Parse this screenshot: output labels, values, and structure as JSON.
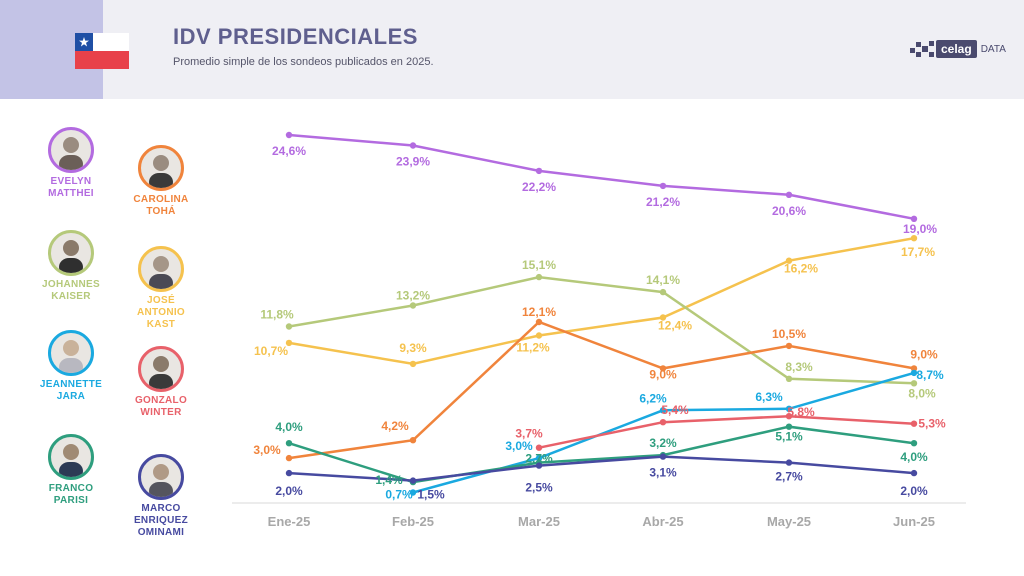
{
  "header": {
    "title": "IDV PRESIDENCIALES",
    "subtitle": "Promedio simple de los sondeos publicados en 2025.",
    "logo_name": "celag",
    "logo_sub": "DATA"
  },
  "candidates": [
    {
      "line1": "EVELYN",
      "line2": "MATTHEI",
      "line3": "",
      "color": "#b36be0"
    },
    {
      "line1": "CAROLINA",
      "line2": "TOHÁ",
      "line3": "",
      "color": "#f0843c"
    },
    {
      "line1": "JOHANNES",
      "line2": "KAISER",
      "line3": "",
      "color": "#b5c97a"
    },
    {
      "line1": "JOSÉ",
      "line2": "ANTONIO",
      "line3": "KAST",
      "color": "#f5c24e"
    },
    {
      "line1": "JEANNETTE",
      "line2": "JARA",
      "line3": "",
      "color": "#1aa9e0"
    },
    {
      "line1": "GONZALO",
      "line2": "WINTER",
      "line3": "",
      "color": "#e8616a"
    },
    {
      "line1": "FRANCO",
      "line2": "PARISI",
      "line3": "",
      "color": "#2e9e7e"
    },
    {
      "line1": "MARCO",
      "line2": "ENRIQUEZ",
      "line3": "OMINAMI",
      "color": "#474aa0"
    }
  ],
  "chart_data": {
    "type": "line",
    "title": "IDV PRESIDENCIALES",
    "subtitle": "Promedio simple de los sondeos publicados en 2025.",
    "categories": [
      "Ene-25",
      "Feb-25",
      "Mar-25",
      "Abr-25",
      "May-25",
      "Jun-25"
    ],
    "ylim": [
      0,
      26
    ],
    "grid": false,
    "series": [
      {
        "name": "EVELYN MATTHEI",
        "color": "#b36be0",
        "values": [
          24.6,
          23.9,
          22.2,
          21.2,
          20.6,
          19.0
        ],
        "labels": [
          "24,6%",
          "23,9%",
          "22,2%",
          "21,2%",
          "20,6%",
          "19,0%"
        ]
      },
      {
        "name": "JOSÉ ANTONIO KAST",
        "color": "#f5c24e",
        "values": [
          10.7,
          9.3,
          11.2,
          12.4,
          16.2,
          17.7
        ],
        "labels": [
          "10,7%",
          "9,3%",
          "11,2%",
          "12,4%",
          "16,2%",
          "17,7%"
        ]
      },
      {
        "name": "JOHANNES KAISER",
        "color": "#b5c97a",
        "values": [
          11.8,
          13.2,
          15.1,
          14.1,
          8.3,
          8.0
        ],
        "labels": [
          "11,8%",
          "13,2%",
          "15,1%",
          "14,1%",
          "8,3%",
          "8,0%"
        ]
      },
      {
        "name": "CAROLINA TOHÁ",
        "color": "#f0843c",
        "values": [
          3.0,
          4.2,
          12.1,
          9.0,
          10.5,
          9.0
        ],
        "labels": [
          "3,0%",
          "4,2%",
          "12,1%",
          "9,0%",
          "10,5%",
          "9,0%"
        ]
      },
      {
        "name": "JEANNETTE JARA",
        "color": "#1aa9e0",
        "values": [
          null,
          0.7,
          3.0,
          6.2,
          6.3,
          8.7
        ],
        "labels": [
          "",
          "0,7%",
          "3,0%",
          "6,2%",
          "6,3%",
          "8,7%"
        ]
      },
      {
        "name": "GONZALO WINTER",
        "color": "#e8616a",
        "values": [
          null,
          null,
          3.7,
          5.4,
          5.8,
          5.3
        ],
        "labels": [
          "",
          "",
          "3,7%",
          "5,4%",
          "5,8%",
          "5,3%"
        ]
      },
      {
        "name": "FRANCO PARISI",
        "color": "#2e9e7e",
        "values": [
          4.0,
          1.4,
          2.7,
          3.2,
          5.1,
          4.0
        ],
        "labels": [
          "4,0%",
          "1,4%",
          "2,7%",
          "3,2%",
          "5,1%",
          "4,0%"
        ]
      },
      {
        "name": "MARCO ENRIQUEZ OMINAMI",
        "color": "#474aa0",
        "values": [
          2.0,
          1.5,
          2.5,
          3.1,
          2.7,
          2.0
        ],
        "labels": [
          "2,0%",
          "1,5%",
          "2,5%",
          "3,1%",
          "2,7%",
          "2,0%"
        ]
      }
    ]
  }
}
